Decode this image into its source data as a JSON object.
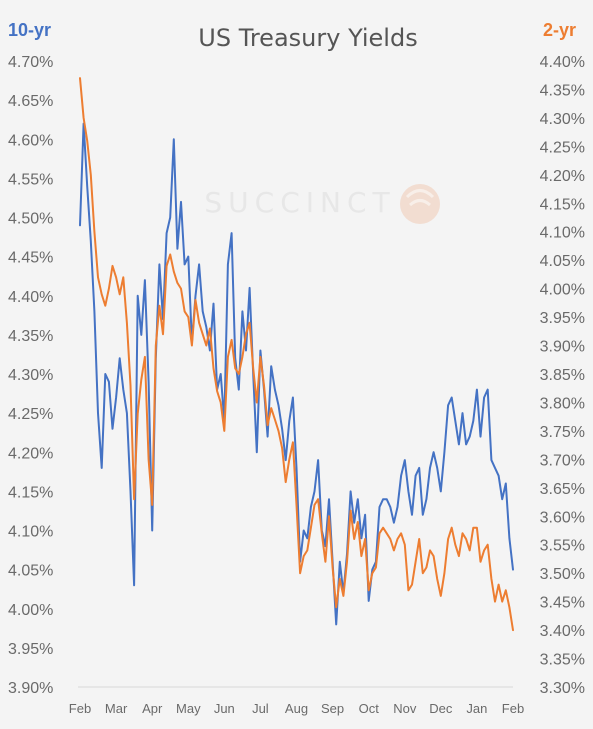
{
  "chart_data": {
    "type": "line",
    "title": "US Treasury Yields",
    "left_axis": {
      "label": "10-yr",
      "color": "#4472c4",
      "range": [
        3.9,
        4.7
      ],
      "ticks": [
        "4.70%",
        "4.65%",
        "4.60%",
        "4.55%",
        "4.50%",
        "4.45%",
        "4.40%",
        "4.35%",
        "4.30%",
        "4.25%",
        "4.20%",
        "4.15%",
        "4.10%",
        "4.05%",
        "4.00%",
        "3.95%",
        "3.90%"
      ]
    },
    "right_axis": {
      "label": "2-yr",
      "color": "#ed7d31",
      "range": [
        3.3,
        4.4
      ],
      "ticks": [
        "4.40%",
        "4.35%",
        "4.30%",
        "4.25%",
        "4.20%",
        "4.15%",
        "4.10%",
        "4.05%",
        "4.00%",
        "3.95%",
        "3.90%",
        "3.85%",
        "3.80%",
        "3.75%",
        "3.70%",
        "3.65%",
        "3.60%",
        "3.55%",
        "3.50%",
        "3.45%",
        "3.40%",
        "3.35%",
        "3.30%"
      ]
    },
    "x_axis": {
      "ticks": [
        "Feb",
        "Mar",
        "Apr",
        "May",
        "Jun",
        "Jul",
        "Aug",
        "Sep",
        "Oct",
        "Nov",
        "Dec",
        "Jan",
        "Feb"
      ]
    },
    "watermark": "SUCCINCT",
    "series": [
      {
        "name": "10-yr",
        "axis": "left",
        "color": "#4472c4",
        "x": [
          0.0,
          0.1,
          0.2,
          0.3,
          0.4,
          0.5,
          0.6,
          0.7,
          0.8,
          0.9,
          1.0,
          1.1,
          1.2,
          1.3,
          1.4,
          1.5,
          1.6,
          1.7,
          1.8,
          1.9,
          2.0,
          2.1,
          2.2,
          2.3,
          2.4,
          2.5,
          2.6,
          2.7,
          2.8,
          2.9,
          3.0,
          3.1,
          3.2,
          3.3,
          3.4,
          3.5,
          3.6,
          3.7,
          3.8,
          3.9,
          4.0,
          4.1,
          4.2,
          4.3,
          4.4,
          4.5,
          4.6,
          4.7,
          4.8,
          4.9,
          5.0,
          5.1,
          5.2,
          5.3,
          5.4,
          5.5,
          5.6,
          5.7,
          5.8,
          5.9,
          6.0,
          6.1,
          6.2,
          6.3,
          6.4,
          6.5,
          6.6,
          6.7,
          6.8,
          6.9,
          7.0,
          7.1,
          7.2,
          7.3,
          7.4,
          7.5,
          7.6,
          7.7,
          7.8,
          7.9,
          8.0,
          8.1,
          8.2,
          8.3,
          8.4,
          8.5,
          8.6,
          8.7,
          8.8,
          8.9,
          9.0,
          9.1,
          9.2,
          9.3,
          9.4,
          9.5,
          9.6,
          9.7,
          9.8,
          9.9,
          10.0,
          10.1,
          10.2,
          10.3,
          10.4,
          10.5,
          10.6,
          10.7,
          10.8,
          10.9,
          11.0,
          11.1,
          11.2,
          11.3,
          11.4,
          11.5,
          11.6,
          11.7,
          11.8,
          11.9,
          12.0
        ],
        "values": [
          4.49,
          4.62,
          4.54,
          4.47,
          4.38,
          4.25,
          4.18,
          4.3,
          4.29,
          4.23,
          4.27,
          4.32,
          4.28,
          4.25,
          4.15,
          4.03,
          4.4,
          4.35,
          4.42,
          4.29,
          4.1,
          4.32,
          4.44,
          4.37,
          4.48,
          4.5,
          4.6,
          4.46,
          4.52,
          4.44,
          4.45,
          4.34,
          4.4,
          4.44,
          4.38,
          4.36,
          4.33,
          4.39,
          4.28,
          4.3,
          4.24,
          4.44,
          4.48,
          4.32,
          4.28,
          4.38,
          4.33,
          4.41,
          4.3,
          4.2,
          4.33,
          4.28,
          4.22,
          4.31,
          4.28,
          4.26,
          4.23,
          4.19,
          4.24,
          4.27,
          4.18,
          4.06,
          4.1,
          4.09,
          4.13,
          4.15,
          4.19,
          4.1,
          4.08,
          4.14,
          4.06,
          3.98,
          4.06,
          4.02,
          4.07,
          4.15,
          4.11,
          4.14,
          4.09,
          4.12,
          4.01,
          4.05,
          4.06,
          4.13,
          4.14,
          4.14,
          4.13,
          4.11,
          4.13,
          4.17,
          4.19,
          4.15,
          4.12,
          4.17,
          4.18,
          4.12,
          4.14,
          4.18,
          4.2,
          4.18,
          4.15,
          4.2,
          4.26,
          4.27,
          4.24,
          4.21,
          4.25,
          4.21,
          4.22,
          4.24,
          4.28,
          4.22,
          4.27,
          4.28,
          4.19,
          4.18,
          4.17,
          4.14,
          4.16,
          4.09,
          4.05
        ]
      },
      {
        "name": "2-yr",
        "axis": "right",
        "color": "#ed7d31",
        "x": [
          0.0,
          0.1,
          0.2,
          0.3,
          0.4,
          0.5,
          0.6,
          0.7,
          0.8,
          0.9,
          1.0,
          1.1,
          1.2,
          1.3,
          1.4,
          1.5,
          1.6,
          1.7,
          1.8,
          1.9,
          2.0,
          2.1,
          2.2,
          2.3,
          2.4,
          2.5,
          2.6,
          2.7,
          2.8,
          2.9,
          3.0,
          3.1,
          3.2,
          3.3,
          3.4,
          3.5,
          3.6,
          3.7,
          3.8,
          3.9,
          4.0,
          4.1,
          4.2,
          4.3,
          4.4,
          4.5,
          4.6,
          4.7,
          4.8,
          4.9,
          5.0,
          5.1,
          5.2,
          5.3,
          5.4,
          5.5,
          5.6,
          5.7,
          5.8,
          5.9,
          6.0,
          6.1,
          6.2,
          6.3,
          6.4,
          6.5,
          6.6,
          6.7,
          6.8,
          6.9,
          7.0,
          7.1,
          7.2,
          7.3,
          7.4,
          7.5,
          7.6,
          7.7,
          7.8,
          7.9,
          8.0,
          8.1,
          8.2,
          8.3,
          8.4,
          8.5,
          8.6,
          8.7,
          8.8,
          8.9,
          9.0,
          9.1,
          9.2,
          9.3,
          9.4,
          9.5,
          9.6,
          9.7,
          9.8,
          9.9,
          10.0,
          10.1,
          10.2,
          10.3,
          10.4,
          10.5,
          10.6,
          10.7,
          10.8,
          10.9,
          11.0,
          11.1,
          11.2,
          11.3,
          11.4,
          11.5,
          11.6,
          11.7,
          11.8,
          11.9,
          12.0
        ],
        "values": [
          4.37,
          4.3,
          4.26,
          4.2,
          4.1,
          4.02,
          3.99,
          3.97,
          4.0,
          4.04,
          4.02,
          3.99,
          4.02,
          3.94,
          3.83,
          3.63,
          3.78,
          3.84,
          3.88,
          3.7,
          3.62,
          3.9,
          3.97,
          3.92,
          4.04,
          4.06,
          4.03,
          4.01,
          4.0,
          3.96,
          3.95,
          3.9,
          3.98,
          3.94,
          3.92,
          3.9,
          3.93,
          3.86,
          3.82,
          3.8,
          3.75,
          3.88,
          3.91,
          3.86,
          3.85,
          3.88,
          3.92,
          3.94,
          3.86,
          3.8,
          3.88,
          3.83,
          3.76,
          3.79,
          3.77,
          3.75,
          3.72,
          3.66,
          3.7,
          3.73,
          3.62,
          3.5,
          3.53,
          3.54,
          3.58,
          3.62,
          3.63,
          3.57,
          3.52,
          3.6,
          3.51,
          3.44,
          3.49,
          3.46,
          3.52,
          3.61,
          3.56,
          3.59,
          3.53,
          3.56,
          3.47,
          3.5,
          3.51,
          3.57,
          3.58,
          3.57,
          3.56,
          3.54,
          3.56,
          3.57,
          3.55,
          3.47,
          3.48,
          3.52,
          3.56,
          3.5,
          3.51,
          3.54,
          3.53,
          3.49,
          3.46,
          3.5,
          3.56,
          3.58,
          3.55,
          3.53,
          3.57,
          3.56,
          3.54,
          3.58,
          3.58,
          3.52,
          3.54,
          3.55,
          3.49,
          3.45,
          3.48,
          3.45,
          3.47,
          3.44,
          3.4
        ]
      }
    ]
  }
}
